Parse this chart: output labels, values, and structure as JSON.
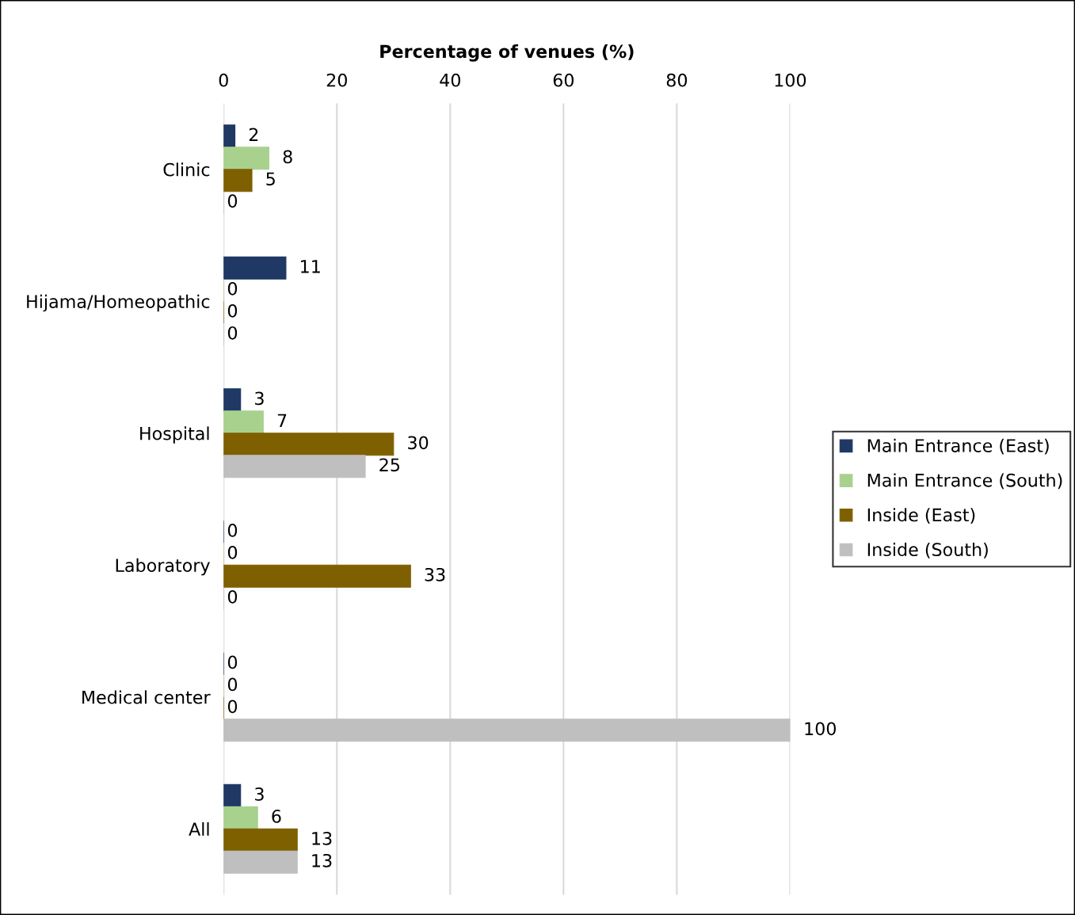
{
  "chart_data": {
    "type": "bar",
    "orientation": "horizontal",
    "xlabel": "Percentage of venues (%)",
    "categories": [
      "Clinic",
      "Hijama/Homeopathic",
      "Hospital",
      "Laboratory",
      "Medical center",
      "All"
    ],
    "series": [
      {
        "name": "Main Entrance (East)",
        "color": "#1f3864",
        "values": [
          2,
          11,
          3,
          0,
          0,
          3
        ]
      },
      {
        "name": "Main Entrance (South)",
        "color": "#a9d18e",
        "values": [
          8,
          0,
          7,
          0,
          0,
          6
        ]
      },
      {
        "name": "Inside (East)",
        "color": "#7f6000",
        "values": [
          5,
          0,
          30,
          33,
          0,
          13
        ]
      },
      {
        "name": "Inside (South)",
        "color": "#bfbfbf",
        "values": [
          0,
          0,
          25,
          0,
          100,
          13
        ]
      }
    ],
    "xlim": [
      0,
      100
    ],
    "xticks": [
      0,
      20,
      40,
      60,
      80,
      100
    ],
    "grid": "x",
    "legend": "right",
    "data_labels": true
  }
}
